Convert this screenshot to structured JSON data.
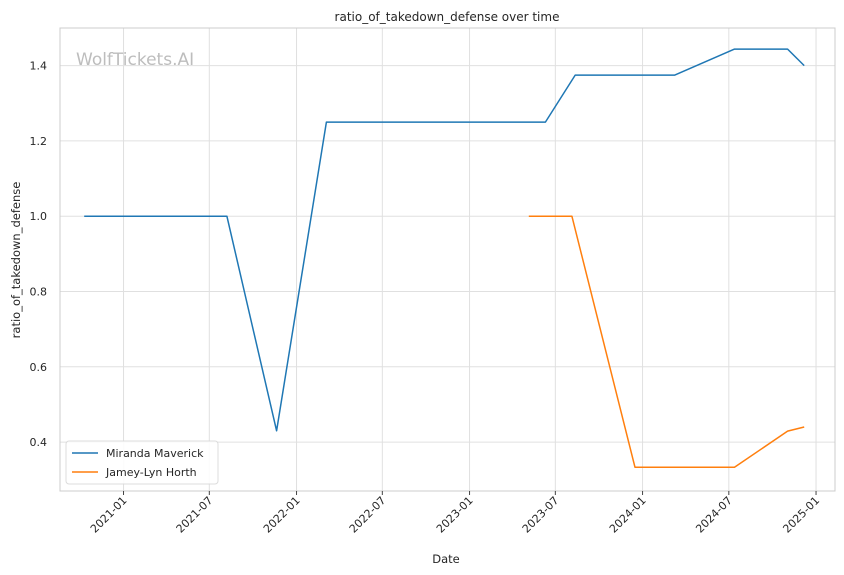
{
  "chart_data": {
    "type": "line",
    "title": "ratio_of_takedown_defense over time",
    "xlabel": "Date",
    "ylabel": "ratio_of_takedown_defense",
    "watermark": "WolfTickets.AI",
    "xlim": [
      "2020-08-20",
      "2025-02-10"
    ],
    "ylim": [
      0.27,
      1.5
    ],
    "x_ticks": [
      "2021-01",
      "2021-07",
      "2022-01",
      "2022-07",
      "2023-01",
      "2023-07",
      "2024-01",
      "2024-07",
      "2025-01"
    ],
    "x_tick_dates": [
      "2021-01-01",
      "2021-07-01",
      "2022-01-01",
      "2022-07-01",
      "2023-01-01",
      "2023-07-01",
      "2024-01-01",
      "2024-07-01",
      "2025-01-01"
    ],
    "y_ticks": [
      "0.4",
      "0.6",
      "0.8",
      "1.0",
      "1.2",
      "1.4"
    ],
    "y_tick_values": [
      0.4,
      0.6,
      0.8,
      1.0,
      1.2,
      1.4
    ],
    "grid": true,
    "legend_position": "lower-left",
    "series": [
      {
        "name": "Miranda Maverick",
        "color": "#1f77b4",
        "points": [
          {
            "x": "2020-10-10",
            "y": 1.0
          },
          {
            "x": "2021-08-07",
            "y": 1.0
          },
          {
            "x": "2021-11-20",
            "y": 0.43
          },
          {
            "x": "2022-03-05",
            "y": 1.25
          },
          {
            "x": "2023-06-10",
            "y": 1.25
          },
          {
            "x": "2023-08-12",
            "y": 1.375
          },
          {
            "x": "2024-03-09",
            "y": 1.375
          },
          {
            "x": "2024-07-13",
            "y": 1.444
          },
          {
            "x": "2024-11-02",
            "y": 1.444
          },
          {
            "x": "2024-12-07",
            "y": 1.4
          }
        ]
      },
      {
        "name": "Jamey-Lyn Horth",
        "color": "#ff7f0e",
        "points": [
          {
            "x": "2023-05-06",
            "y": 1.0
          },
          {
            "x": "2023-08-05",
            "y": 1.0
          },
          {
            "x": "2023-12-16",
            "y": 0.333
          },
          {
            "x": "2024-07-13",
            "y": 0.333
          },
          {
            "x": "2024-11-02",
            "y": 0.429
          },
          {
            "x": "2024-12-07",
            "y": 0.44
          }
        ]
      }
    ]
  }
}
